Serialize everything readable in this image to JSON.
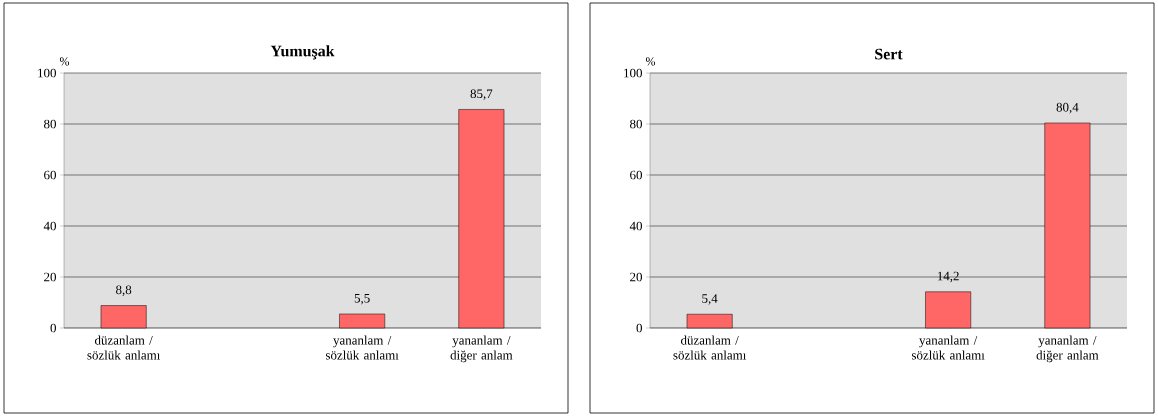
{
  "chart_data": [
    {
      "type": "bar",
      "title": "Yumuşak",
      "ylabel": "%",
      "categories": [
        "düzanlam / sözlük anlamı",
        null,
        "yananlam / sözlük anlamı",
        "yananlam / diğer anlam"
      ],
      "values": [
        8.8,
        null,
        5.5,
        85.7
      ],
      "value_labels": [
        "8,8",
        null,
        "5,5",
        "85,7"
      ],
      "color": "#ff6666",
      "ylim": [
        0,
        100
      ],
      "yticks": [
        0,
        20,
        40,
        60,
        80,
        100
      ],
      "grid": "y"
    },
    {
      "type": "bar",
      "title": "Sert",
      "ylabel": "%",
      "categories": [
        "düzanlam / sözlük anlamı",
        null,
        "yananlam / sözlük anlamı",
        "yananlam / diğer anlam"
      ],
      "values": [
        5.4,
        null,
        14.2,
        80.4
      ],
      "value_labels": [
        "5,4",
        null,
        "14,2",
        "80,4"
      ],
      "color": "#ff6666",
      "ylim": [
        0,
        100
      ],
      "yticks": [
        0,
        20,
        40,
        60,
        80,
        100
      ],
      "grid": "y"
    }
  ]
}
